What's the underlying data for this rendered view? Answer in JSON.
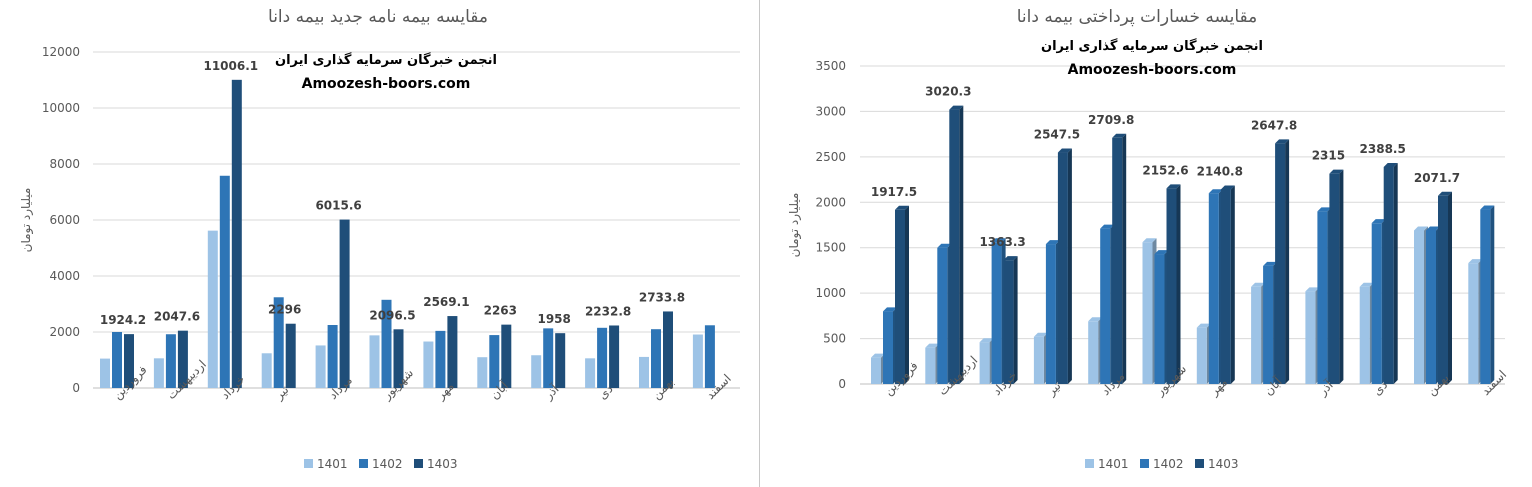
{
  "colors": {
    "s1401": "#9dc3e6",
    "s1402": "#2e75b6",
    "s1403": "#1f4e79",
    "grid": "#d9d9d9",
    "text": "#595959"
  },
  "chart_data": [
    {
      "type": "bar",
      "title": "مقایسه بیمه نامه جدید بیمه دانا",
      "watermark": [
        "انجمن خبرگان سرمایه گذاری ایران",
        "Amoozesh-boors.com"
      ],
      "ylabel": "میلیارد تومان",
      "xlabel": "",
      "ylim": [
        0,
        12000
      ],
      "yticks": [
        "0",
        "2000",
        "4000",
        "6000",
        "8000",
        "10000",
        "12000"
      ],
      "grid": true,
      "legend": "bottom",
      "categories": [
        "فروردین",
        "اردیبهشت",
        "خرداد",
        "تیر",
        "مرداد",
        "شهریور",
        "مهر",
        "آبان",
        "آذر",
        "دی",
        "بهمن",
        "اسفند"
      ],
      "series": [
        {
          "name": "1401",
          "values": [
            1050,
            1060,
            5620,
            1240,
            1520,
            1880,
            1660,
            1100,
            1170,
            1060,
            1110,
            1910
          ]
        },
        {
          "name": "1402",
          "values": [
            2000,
            1920,
            7580,
            3240,
            2250,
            3150,
            2040,
            1890,
            2130,
            2150,
            2100,
            2240
          ]
        },
        {
          "name": "1403",
          "values": [
            1924.2,
            2047.6,
            11006.1,
            2296,
            6015.6,
            2096.5,
            2569.1,
            2263,
            1958,
            2232.8,
            2733.8,
            null
          ]
        }
      ],
      "data_labels": [
        "1924.2",
        "2047.6",
        "11006.1",
        "2296",
        "6015.6",
        "2096.5",
        "2569.1",
        "2263",
        "1958",
        "2232.8",
        "2733.8",
        ""
      ]
    },
    {
      "type": "bar",
      "title": "مقایسه خسارات پرداختی بیمه دانا",
      "watermark": [
        "انجمن خبرگان سرمایه گذاری ایران",
        "Amoozesh-boors.com"
      ],
      "ylabel": "میلیارد تومان",
      "xlabel": "",
      "ylim": [
        0,
        3500
      ],
      "yticks": [
        "0",
        "500",
        "1000",
        "1500",
        "2000",
        "2500",
        "3000",
        "3500"
      ],
      "grid": true,
      "legend": "bottom",
      "categories": [
        "فروردین",
        "اردیبهشت",
        "خرداد",
        "تیر",
        "مرداد",
        "شهریور",
        "مهر",
        "آبان",
        "آذر",
        "دی",
        "بهمن",
        "اسفند"
      ],
      "series": [
        {
          "name": "1401",
          "values": [
            290,
            400,
            460,
            520,
            690,
            1560,
            620,
            1070,
            1020,
            1070,
            1690,
            1330
          ]
        },
        {
          "name": "1402",
          "values": [
            800,
            1500,
            1560,
            1540,
            1710,
            1430,
            2100,
            1300,
            1900,
            1770,
            1690,
            1920
          ]
        },
        {
          "name": "1403",
          "values": [
            1917.5,
            3020.3,
            1363.3,
            2547.5,
            2709.8,
            2152.6,
            2140.8,
            2647.8,
            2315,
            2388.5,
            2071.7,
            null
          ]
        }
      ],
      "data_labels": [
        "1917.5",
        "3020.3",
        "1363.3",
        "2547.5",
        "2709.8",
        "2152.6",
        "2140.8",
        "2647.8",
        "2315",
        "2388.5",
        "2071.7",
        ""
      ]
    }
  ]
}
